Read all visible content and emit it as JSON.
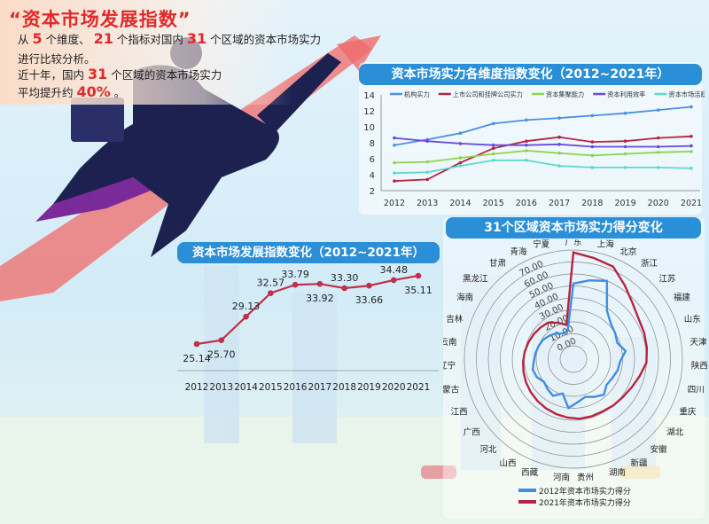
{
  "intro": {
    "headline": "“资本市场发展指数”",
    "line1": [
      "从",
      "5",
      "个维度、",
      "21",
      "个指标对国内",
      "31",
      "个区域的资本市场实力"
    ],
    "line2": "进行比较分析。",
    "line3": [
      "近十年，国内",
      "31",
      "个区域的资本市场实力"
    ],
    "line4": [
      "平均提升约",
      "40%",
      "。"
    ]
  },
  "colors": {
    "accent_red": "#e02a2a",
    "title_blue": "#2b8fd8",
    "index_line": "#c0304a"
  },
  "chart_data": [
    {
      "type": "line",
      "title": "资本市场实力各维度指数变化（2012~2021年）",
      "categories": [
        "2012",
        "2013",
        "2014",
        "2015",
        "2016",
        "2017",
        "2018",
        "2019",
        "2020",
        "2021"
      ],
      "ylim": [
        2,
        14
      ],
      "yticks": [
        "2",
        "4",
        "6",
        "8",
        "10",
        "12",
        "14"
      ],
      "legend": "top",
      "grid": false,
      "series": [
        {
          "name": "机构实力",
          "color": "#4a8fe0",
          "values": [
            7.7,
            8.4,
            9.2,
            10.4,
            10.85,
            11.1,
            11.4,
            11.7,
            12.1,
            12.5
          ]
        },
        {
          "name": "上市公司和挂牌公司实力",
          "color": "#b8243f",
          "values": [
            3.2,
            3.4,
            5.5,
            7.3,
            8.2,
            8.7,
            8.1,
            8.2,
            8.6,
            8.8
          ]
        },
        {
          "name": "资本集聚能力",
          "color": "#8ed44a",
          "values": [
            5.5,
            5.6,
            6.1,
            6.6,
            7.0,
            6.7,
            6.4,
            6.6,
            6.8,
            6.9
          ]
        },
        {
          "name": "资本利用效率",
          "color": "#6a4ad8",
          "values": [
            8.6,
            8.2,
            7.9,
            7.7,
            7.7,
            7.8,
            7.5,
            7.5,
            7.5,
            7.6
          ]
        },
        {
          "name": "资本市场活跃度",
          "color": "#5fd8cc",
          "values": [
            4.2,
            4.3,
            5.1,
            5.8,
            5.8,
            5.1,
            4.9,
            4.9,
            4.9,
            4.8
          ]
        }
      ]
    },
    {
      "type": "line",
      "title": "资本市场发展指数变化（2012~2021年）",
      "categories": [
        "2012",
        "2013",
        "2014",
        "2015",
        "2016",
        "2017",
        "2018",
        "2019",
        "2020",
        "2021"
      ],
      "values": [
        25.14,
        25.7,
        29.13,
        32.57,
        33.79,
        33.92,
        33.3,
        33.66,
        34.48,
        35.11
      ],
      "labels": [
        "25.14",
        "25.70",
        "29.13",
        "32.57",
        "33.79",
        "33.92",
        "33.30",
        "33.66",
        "34.48",
        "35.11"
      ],
      "color": "#c0304a"
    },
    {
      "type": "radar",
      "title": "31个区域资本市场实力得分变化",
      "categories": [
        "广东",
        "上海",
        "北京",
        "浙江",
        "江苏",
        "福建",
        "山东",
        "天津",
        "陕西",
        "四川",
        "重庆",
        "湖北",
        "安徽",
        "新疆",
        "湖南",
        "贵州",
        "河南",
        "西藏",
        "山西",
        "河北",
        "广西",
        "江西",
        "内蒙古",
        "辽宁",
        "云南",
        "吉林",
        "海南",
        "黑龙江",
        "甘肃",
        "青海",
        "宁夏"
      ],
      "rlim": [
        0,
        80
      ],
      "ring_labels": [
        "0.00",
        "10.00",
        "20.00",
        "30.00",
        "40.00",
        "50.00",
        "60.00",
        "70.00"
      ],
      "legend": "bottom",
      "series": [
        {
          "name": "2012年资本市场实力得分",
          "color": "#3f8ee6",
          "values": [
            52,
            56,
            60,
            38,
            32,
            30,
            28,
            33,
            28,
            27,
            25,
            24,
            28,
            25,
            22,
            25,
            30,
            19,
            24,
            22,
            20,
            23,
            24,
            22,
            21,
            20,
            19,
            17,
            15,
            12,
            13
          ]
        },
        {
          "name": "2021年资本市场实力得分",
          "color": "#b8243f",
          "values": [
            78,
            75,
            73,
            64,
            57,
            53,
            52,
            51,
            50,
            46,
            43,
            41,
            40,
            39,
            39,
            39,
            38,
            37,
            36,
            35,
            34,
            33,
            32,
            31,
            30,
            29,
            28,
            27,
            26,
            22,
            18
          ]
        }
      ]
    }
  ]
}
